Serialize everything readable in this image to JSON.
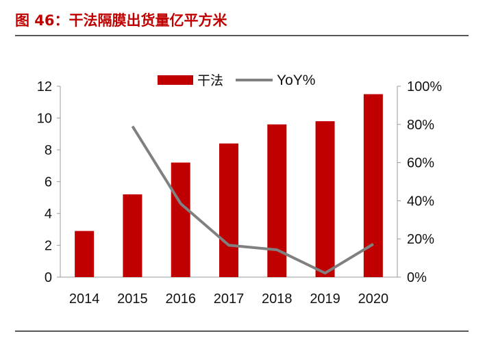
{
  "title": "图 46：干法隔膜出货量亿平方米",
  "chart_data": {
    "type": "bar+line",
    "categories": [
      "2014",
      "2015",
      "2016",
      "2017",
      "2018",
      "2019",
      "2020"
    ],
    "series": [
      {
        "name": "干法",
        "type": "bar",
        "axis": "left",
        "color": "#c00000",
        "values": [
          2.9,
          5.2,
          7.2,
          8.4,
          9.6,
          9.8,
          11.5
        ]
      },
      {
        "name": "YoY%",
        "type": "line",
        "axis": "right",
        "color": "#808080",
        "values": [
          null,
          79,
          38.5,
          16.7,
          14.3,
          2.1,
          17.3
        ]
      }
    ],
    "y_left": {
      "range": [
        0,
        12
      ],
      "ticks": [
        "0",
        "2",
        "4",
        "6",
        "8",
        "10",
        "12"
      ]
    },
    "y_right": {
      "range": [
        0,
        100
      ],
      "ticks": [
        "0%",
        "20%",
        "40%",
        "60%",
        "80%",
        "100%"
      ]
    },
    "grid": false,
    "legend": "top-center"
  }
}
